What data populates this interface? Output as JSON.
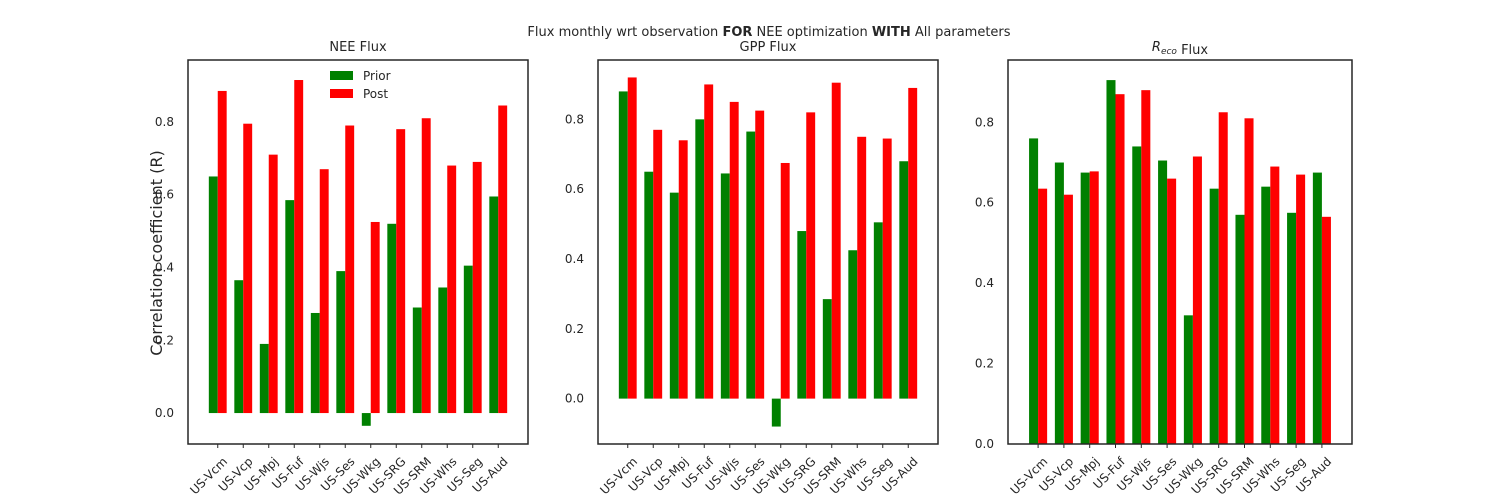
{
  "figure": {
    "title_parts": [
      {
        "text": "Flux monthly wrt observation ",
        "bold": false
      },
      {
        "text": "FOR",
        "bold": true
      },
      {
        "text": " NEE optimization ",
        "bold": false
      },
      {
        "text": "WITH",
        "bold": true
      },
      {
        "text": " All parameters",
        "bold": false
      }
    ],
    "ylabel": "Correlation coefficient (R)"
  },
  "colors": {
    "prior": "#008000",
    "post": "#ff0000",
    "axis": "#262626"
  },
  "chart_data": [
    {
      "type": "bar",
      "title": "NEE Flux",
      "title_parts": [
        {
          "text": "NEE Flux",
          "italic": false
        }
      ],
      "categories": [
        "US-Vcm",
        "US-Vcp",
        "US-Mpj",
        "US-Fuf",
        "US-Wjs",
        "US-Ses",
        "US-Wkg",
        "US-SRG",
        "US-SRM",
        "US-Whs",
        "US-Seg",
        "US-Aud"
      ],
      "series": [
        {
          "name": "Prior",
          "values": [
            0.65,
            0.365,
            0.19,
            0.585,
            0.275,
            0.39,
            -0.035,
            0.52,
            0.29,
            0.345,
            0.405,
            0.595
          ]
        },
        {
          "name": "Post",
          "values": [
            0.885,
            0.795,
            0.71,
            0.915,
            0.67,
            0.79,
            0.525,
            0.78,
            0.81,
            0.68,
            0.69,
            0.845
          ]
        }
      ],
      "yticks": [
        0.0,
        0.2,
        0.4,
        0.6,
        0.8
      ],
      "ytick_labels": [
        "0.0",
        "0.2",
        "0.4",
        "0.6",
        "0.8"
      ],
      "ylim": [
        -0.085,
        0.97
      ],
      "legend": {
        "position": "top-center",
        "entries": [
          "Prior",
          "Post"
        ]
      },
      "grid": false
    },
    {
      "type": "bar",
      "title": "GPP Flux",
      "title_parts": [
        {
          "text": "GPP Flux",
          "italic": false
        }
      ],
      "categories": [
        "US-Vcm",
        "US-Vcp",
        "US-Mpj",
        "US-Fuf",
        "US-Wjs",
        "US-Ses",
        "US-Wkg",
        "US-SRG",
        "US-SRM",
        "US-Whs",
        "US-Seg",
        "US-Aud"
      ],
      "series": [
        {
          "name": "Prior",
          "values": [
            0.88,
            0.65,
            0.59,
            0.8,
            0.645,
            0.765,
            -0.08,
            0.48,
            0.285,
            0.425,
            0.505,
            0.68
          ]
        },
        {
          "name": "Post",
          "values": [
            0.92,
            0.77,
            0.74,
            0.9,
            0.85,
            0.825,
            0.675,
            0.82,
            0.905,
            0.75,
            0.745,
            0.89
          ]
        }
      ],
      "yticks": [
        0.0,
        0.2,
        0.4,
        0.6,
        0.8
      ],
      "ytick_labels": [
        "0.0",
        "0.2",
        "0.4",
        "0.6",
        "0.8"
      ],
      "ylim": [
        -0.13,
        0.97
      ],
      "grid": false
    },
    {
      "type": "bar",
      "title": "Reco Flux",
      "title_parts": [
        {
          "text": "R",
          "italic": true
        },
        {
          "text": "eco",
          "italic": true,
          "sub": true
        },
        {
          "text": " Flux",
          "italic": false
        }
      ],
      "categories": [
        "US-Vcm",
        "US-Vcp",
        "US-Mpj",
        "US-Fuf",
        "US-Wjs",
        "US-Ses",
        "US-Wkg",
        "US-SRG",
        "US-SRM",
        "US-Whs",
        "US-Seg",
        "US-Aud"
      ],
      "series": [
        {
          "name": "Prior",
          "values": [
            0.76,
            0.7,
            0.675,
            0.905,
            0.74,
            0.705,
            0.32,
            0.635,
            0.57,
            0.64,
            0.575,
            0.675
          ]
        },
        {
          "name": "Post",
          "values": [
            0.635,
            0.62,
            0.678,
            0.87,
            0.88,
            0.66,
            0.715,
            0.825,
            0.81,
            0.69,
            0.67,
            0.565
          ]
        }
      ],
      "yticks": [
        0.0,
        0.2,
        0.4,
        0.6,
        0.8
      ],
      "ytick_labels": [
        "0.0",
        "0.2",
        "0.4",
        "0.6",
        "0.8"
      ],
      "ylim": [
        0.0,
        0.955
      ],
      "grid": false
    }
  ]
}
